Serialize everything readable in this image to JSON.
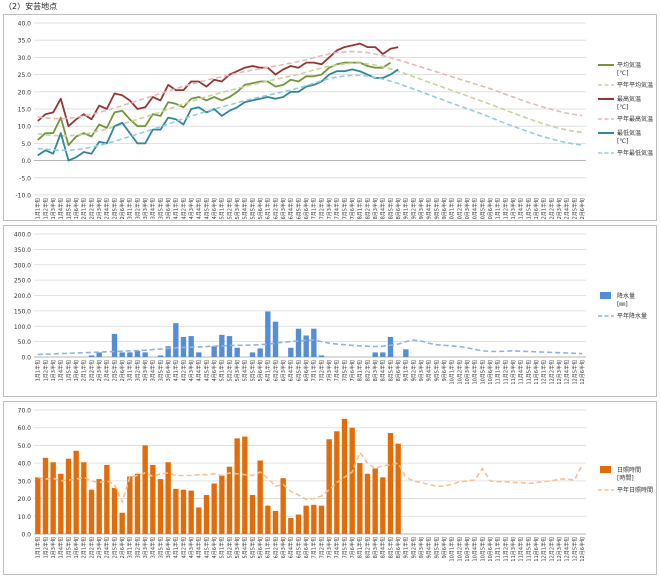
{
  "page_title": "（2）安芸地点",
  "x_labels": [
    "1月1半旬",
    "1月2半旬",
    "1月3半旬",
    "1月4半旬",
    "1月5半旬",
    "1月6半旬",
    "2月1半旬",
    "2月2半旬",
    "2月3半旬",
    "2月4半旬",
    "2月5半旬",
    "2月6半旬",
    "3月1半旬",
    "3月2半旬",
    "3月3半旬",
    "3月4半旬",
    "3月5半旬",
    "3月6半旬",
    "4月1半旬",
    "4月2半旬",
    "4月3半旬",
    "4月4半旬",
    "4月5半旬",
    "4月6半旬",
    "5月1半旬",
    "5月2半旬",
    "5月3半旬",
    "5月4半旬",
    "5月5半旬",
    "5月6半旬",
    "6月1半旬",
    "6月2半旬",
    "6月3半旬",
    "6月4半旬",
    "6月5半旬",
    "6月6半旬",
    "7月1半旬",
    "7月2半旬",
    "7月3半旬",
    "7月4半旬",
    "7月5半旬",
    "7月6半旬",
    "8月1半旬",
    "8月2半旬",
    "8月3半旬",
    "8月4半旬",
    "8月5半旬",
    "8月6半旬",
    "9月1半旬",
    "9月2半旬",
    "9月3半旬",
    "9月4半旬",
    "9月5半旬",
    "9月6半旬",
    "10月1半旬",
    "10月2半旬",
    "10月3半旬",
    "10月4半旬",
    "10月5半旬",
    "10月6半旬",
    "11月1半旬",
    "11月2半旬",
    "11月3半旬",
    "11月4半旬",
    "11月5半旬",
    "11月6半旬",
    "12月1半旬",
    "12月2半旬",
    "12月3半旬",
    "12月4半旬",
    "12月5半旬",
    "12月6半旬"
  ],
  "chart_data": [
    {
      "type": "line",
      "ylim": [
        -10,
        40
      ],
      "yticks": [
        "-10.0",
        "-5.0",
        "0.0",
        "5.0",
        "10.0",
        "15.0",
        "20.0",
        "25.0",
        "30.0",
        "35.0",
        "40.0"
      ],
      "grid": true,
      "legend_position": "right",
      "series": [
        {
          "name": "平均気温\n[℃]",
          "color": "#77933c",
          "style": "solid",
          "values": [
            6,
            8,
            8,
            12.5,
            4.5,
            7,
            8,
            7,
            10.5,
            9.5,
            14,
            14.5,
            12,
            10,
            10,
            13.5,
            13,
            17,
            16.5,
            15.5,
            18,
            18.5,
            17.5,
            18.5,
            17.5,
            18.5,
            20,
            22,
            22.5,
            23,
            23,
            21.5,
            22,
            23.5,
            23,
            24.5,
            24.5,
            25,
            27,
            28,
            28.5,
            28.5,
            28.5,
            27.5,
            27,
            27,
            28.5,
            null,
            null,
            null,
            null,
            null,
            null,
            null,
            null,
            null,
            null,
            null,
            null,
            null,
            null,
            null,
            null,
            null,
            null,
            null,
            null,
            null,
            null,
            null,
            null,
            null
          ]
        },
        {
          "name": "平年平均気温",
          "color": "#c3d69b",
          "style": "dashed",
          "values": [
            7.8,
            7.5,
            7.3,
            7.2,
            7.2,
            7.4,
            7.7,
            8.1,
            8.6,
            9.2,
            9.9,
            10.6,
            11.3,
            12,
            12.7,
            13.4,
            14.1,
            14.9,
            15.7,
            16.5,
            17.2,
            17.9,
            18.6,
            19.2,
            19.8,
            20.4,
            21,
            21.6,
            22.1,
            22.6,
            23.1,
            23.6,
            24.1,
            24.6,
            25.1,
            25.7,
            26.3,
            26.9,
            27.4,
            27.8,
            28.1,
            28.3,
            28.3,
            28.1,
            27.8,
            27.3,
            26.7,
            26,
            25.2,
            24.4,
            23.6,
            22.8,
            22,
            21.2,
            20.4,
            19.6,
            18.8,
            18,
            17.2,
            16.4,
            15.5,
            14.7,
            13.8,
            13,
            12.2,
            11.4,
            10.7,
            10,
            9.4,
            8.9,
            8.5,
            8.2
          ]
        },
        {
          "name": "最高気温\n[℃]",
          "color": "#943634",
          "style": "solid",
          "values": [
            11.5,
            13.5,
            14,
            18,
            10,
            12,
            13.5,
            12,
            16,
            15,
            19.5,
            19,
            17.5,
            15,
            15.5,
            18.5,
            17.5,
            22,
            20.5,
            20.5,
            23,
            23,
            21.5,
            23.5,
            23,
            25,
            26,
            27,
            27.5,
            27,
            27,
            25,
            26.5,
            27.5,
            27,
            28.5,
            28.5,
            28,
            30,
            32,
            33,
            33.5,
            34,
            33,
            33,
            31,
            32.5,
            33,
            null,
            null,
            null,
            null,
            null,
            null,
            null,
            null,
            null,
            null,
            null,
            null,
            null,
            null,
            null,
            null,
            null,
            null,
            null,
            null,
            null,
            null,
            null,
            null
          ]
        },
        {
          "name": "平年最高気温",
          "color": "#e6b9b8",
          "style": "dashed",
          "values": [
            12.7,
            12.4,
            12.2,
            12.2,
            12.3,
            12.6,
            13,
            13.5,
            14,
            14.6,
            15.3,
            16,
            16.7,
            17.4,
            18.1,
            18.8,
            19.5,
            20.2,
            20.9,
            21.6,
            22.2,
            22.8,
            23.4,
            23.9,
            24.4,
            24.9,
            25.4,
            25.9,
            26.3,
            26.7,
            27.1,
            27.5,
            27.9,
            28.3,
            28.8,
            29.3,
            29.9,
            30.5,
            31,
            31.4,
            31.6,
            31.7,
            31.6,
            31.4,
            31,
            30.5,
            29.9,
            29.3,
            28.6,
            27.9,
            27.2,
            26.5,
            25.8,
            25.1,
            24.4,
            23.7,
            23,
            22.3,
            21.6,
            20.9,
            20.1,
            19.3,
            18.5,
            17.7,
            16.9,
            16.2,
            15.5,
            14.9,
            14.3,
            13.8,
            13.4,
            13.1
          ]
        },
        {
          "name": "最低気温\n[℃]",
          "color": "#31859c",
          "style": "solid",
          "values": [
            1.5,
            3,
            2,
            8,
            0,
            1,
            2.5,
            2,
            5.5,
            5,
            10,
            11,
            8,
            5,
            5,
            9,
            9,
            12.5,
            12,
            10.5,
            15,
            15.5,
            14,
            15,
            13,
            14.5,
            15.5,
            17,
            17.5,
            18,
            18.5,
            18,
            18.5,
            20,
            20,
            21.5,
            22,
            23,
            25,
            26,
            26,
            26.5,
            26,
            25,
            24,
            24,
            25,
            26.5,
            null,
            null,
            null,
            null,
            null,
            null,
            null,
            null,
            null,
            null,
            null,
            null,
            null,
            null,
            null,
            null,
            null,
            null,
            null,
            null,
            null,
            null,
            null,
            null
          ]
        },
        {
          "name": "平年最低気温",
          "color": "#93cddd",
          "style": "dashed",
          "values": [
            3.5,
            3.3,
            3.1,
            3,
            3,
            3.2,
            3.5,
            3.9,
            4.4,
            5,
            5.6,
            6.3,
            7,
            7.7,
            8.4,
            9.1,
            9.8,
            10.6,
            11.4,
            12.2,
            12.9,
            13.6,
            14.3,
            15,
            15.6,
            16.2,
            16.8,
            17.4,
            18,
            18.5,
            19,
            19.5,
            20,
            20.5,
            21.1,
            21.8,
            22.5,
            23.2,
            23.8,
            24.3,
            24.6,
            24.8,
            24.8,
            24.6,
            24.2,
            23.7,
            23.1,
            22.4,
            21.6,
            20.8,
            20,
            19.2,
            18.3,
            17.5,
            16.7,
            15.9,
            15.1,
            14.3,
            13.5,
            12.6,
            11.7,
            10.8,
            10,
            9.2,
            8.4,
            7.6,
            6.9,
            6.3,
            5.7,
            5.2,
            4.8,
            4.5
          ]
        }
      ]
    },
    {
      "type": "bar",
      "ylim": [
        0,
        400
      ],
      "yticks": [
        "0.0",
        "50.0",
        "100.0",
        "150.0",
        "200.0",
        "250.0",
        "300.0",
        "350.0",
        "400.0"
      ],
      "grid": true,
      "legend_position": "right",
      "series": [
        {
          "name": "降水量\n[㎜]",
          "color": "#558ed5",
          "kind": "bar",
          "values": [
            0,
            0,
            0,
            0,
            0,
            0,
            0,
            5,
            15,
            0,
            75,
            15,
            15,
            20,
            15,
            0,
            5,
            35,
            110,
            65,
            68,
            15,
            0,
            35,
            72,
            68,
            30,
            0,
            15,
            28,
            148,
            115,
            0,
            30,
            92,
            70,
            92,
            5,
            0,
            0,
            0,
            0,
            0,
            0,
            15,
            15,
            65,
            0,
            25,
            null,
            null,
            null,
            null,
            null,
            null,
            null,
            null,
            null,
            null,
            null,
            null,
            null,
            null,
            null,
            null,
            null,
            null,
            null,
            null,
            null,
            null,
            null
          ]
        },
        {
          "name": "平年降水量",
          "color": "#8eb4e3",
          "kind": "dashed",
          "values": [
            8,
            9,
            10,
            11,
            12,
            13,
            14,
            15,
            16,
            17,
            18,
            19,
            20,
            21,
            22,
            24,
            26,
            28,
            30,
            31,
            32,
            33,
            34,
            35,
            36,
            37,
            38,
            38,
            39,
            40,
            42,
            45,
            48,
            50,
            52,
            54,
            55,
            50,
            45,
            42,
            40,
            38,
            36,
            35,
            34,
            35,
            38,
            42,
            50,
            55,
            52,
            45,
            40,
            38,
            36,
            34,
            30,
            25,
            20,
            18,
            18,
            19,
            20,
            19,
            18,
            17,
            16,
            15,
            14,
            13,
            12,
            11
          ]
        }
      ]
    },
    {
      "type": "bar",
      "ylim": [
        0,
        70
      ],
      "yticks": [
        "0.0",
        "10.0",
        "20.0",
        "30.0",
        "40.0",
        "50.0",
        "60.0",
        "70.0"
      ],
      "grid": true,
      "legend_position": "right",
      "series": [
        {
          "name": "日照時間\n[時間]",
          "color": "#e36c09",
          "kind": "bar",
          "values": [
            32,
            43,
            40.5,
            34,
            42.5,
            47,
            40.5,
            25,
            31,
            39,
            26,
            12,
            32.5,
            34,
            50,
            39,
            31,
            40.5,
            25.5,
            25,
            24.5,
            15,
            22,
            28.5,
            33,
            38,
            54,
            55,
            22,
            41.5,
            16,
            13,
            31.5,
            9,
            11,
            16,
            16.5,
            16,
            53.5,
            58,
            65,
            60,
            40,
            34,
            37,
            32,
            57,
            51,
            null,
            null,
            null,
            null,
            null,
            null,
            null,
            null,
            null,
            null,
            null,
            null,
            null,
            null,
            null,
            null,
            null,
            null,
            null,
            null,
            null,
            null,
            null,
            null
          ]
        },
        {
          "name": "平年日照時間",
          "color": "#fac090",
          "kind": "dashed",
          "values": [
            32,
            31,
            31.5,
            30,
            30.5,
            31,
            32,
            30,
            29,
            30,
            28,
            18,
            32,
            33,
            34.5,
            32.5,
            34,
            34.5,
            33,
            33,
            33,
            33.5,
            33.5,
            34,
            33,
            34.5,
            34,
            33.5,
            33,
            35,
            31.5,
            27,
            28,
            24,
            22,
            19.5,
            20,
            21.5,
            25,
            29,
            32,
            35,
            46,
            40,
            37,
            38.5,
            39,
            40,
            32,
            30,
            29,
            28,
            27,
            27,
            28,
            29.5,
            30,
            30.5,
            37,
            30,
            29.5,
            29.5,
            29,
            29,
            28.5,
            29,
            29.5,
            30,
            31,
            31,
            30.5,
            39
          ]
        }
      ]
    }
  ]
}
